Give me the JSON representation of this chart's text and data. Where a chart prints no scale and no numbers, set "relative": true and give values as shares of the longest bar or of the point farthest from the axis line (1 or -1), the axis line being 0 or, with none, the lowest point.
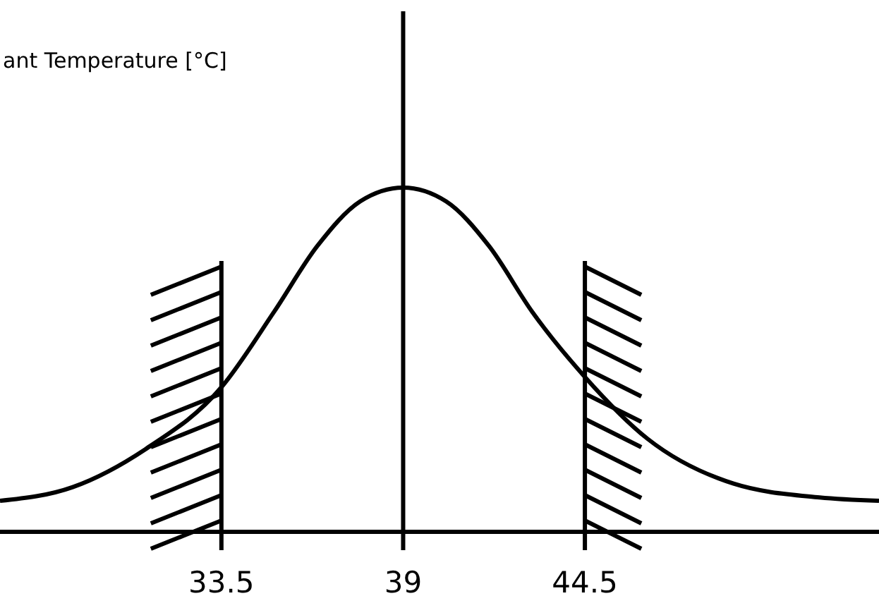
{
  "chart_data": {
    "type": "line",
    "title": "ant Temperature [°C]",
    "relative": true,
    "x": [
      26.8,
      29.0,
      31.2,
      33.5,
      35.1,
      36.4,
      37.7,
      39,
      40.3,
      41.6,
      42.9,
      44.5,
      46.4,
      49.0,
      51.6,
      53.4
    ],
    "series": [
      {
        "color": "#000000",
        "values": [
          0.09,
          0.13,
          0.24,
          0.42,
          0.64,
          0.83,
          0.96,
          1,
          0.96,
          0.83,
          0.64,
          0.45,
          0.27,
          0.14,
          0.1,
          0.09
        ]
      }
    ],
    "xlim": [
      26.8,
      53.4
    ],
    "xticks": [
      33.5,
      39,
      44.5
    ],
    "line_style": "solid",
    "ref_lines": [
      {
        "axis": "x",
        "value": 33.5
      },
      {
        "axis": "x",
        "value": 39
      },
      {
        "axis": "x",
        "value": 44.5
      }
    ]
  }
}
